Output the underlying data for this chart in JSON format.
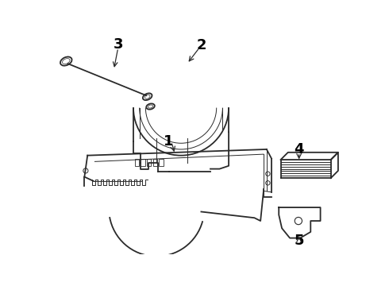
{
  "background_color": "#ffffff",
  "line_color": "#2a2a2a",
  "label_color": "#000000",
  "label_fontsize": 13,
  "lw_main": 1.3,
  "lw_thin": 0.7,
  "lw_med": 1.0
}
